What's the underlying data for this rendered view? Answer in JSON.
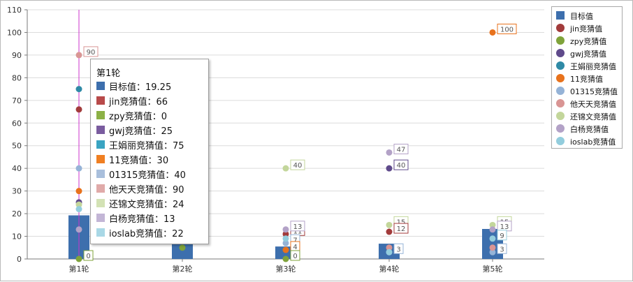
{
  "chart_data": {
    "type": "bar+scatter",
    "categories": [
      "第1轮",
      "第2轮",
      "第3轮",
      "第4轮",
      "第5轮"
    ],
    "ylim": [
      0,
      110
    ],
    "yticks": [
      0,
      10,
      20,
      30,
      40,
      50,
      60,
      70,
      80,
      90,
      100,
      110
    ],
    "grid": true,
    "legend_position": "right",
    "bar_series": {
      "name": "目标值",
      "color": "#3d6fad",
      "values": [
        19.25,
        9,
        5.5,
        6.75,
        13.25
      ]
    },
    "point_series": [
      {
        "name": "jin竞猜值",
        "color": "#a23b3b",
        "values": [
          66,
          null,
          11,
          12,
          null
        ]
      },
      {
        "name": "zpy竞猜值",
        "color": "#7fa33a",
        "values": [
          0,
          5,
          0,
          null,
          null
        ]
      },
      {
        "name": "gwj竞猜值",
        "color": "#5f4a8b",
        "values": [
          25,
          null,
          null,
          40,
          null
        ]
      },
      {
        "name": "王娟丽竞猜值",
        "color": "#2f8aa6",
        "values": [
          75,
          null,
          null,
          null,
          null
        ]
      },
      {
        "name": "11竞猜值",
        "color": "#e8721c",
        "values": [
          30,
          null,
          4,
          null,
          100
        ]
      },
      {
        "name": "01315竞猜值",
        "color": "#95b3d7",
        "values": [
          40,
          null,
          7,
          3,
          3
        ]
      },
      {
        "name": "他天天竞猜值",
        "color": "#d99594",
        "values": [
          90,
          null,
          null,
          5,
          5
        ]
      },
      {
        "name": "还锦文竞猜值",
        "color": "#c3d69b",
        "values": [
          24,
          null,
          40,
          15,
          15
        ]
      },
      {
        "name": "白杨竞猜值",
        "color": "#b3a2c7",
        "values": [
          13,
          null,
          13,
          47,
          13
        ]
      },
      {
        "name": "ioslab竞猜值",
        "color": "#93cddd",
        "values": [
          22,
          null,
          9,
          3,
          9
        ]
      }
    ],
    "labels": [
      {
        "series": "zpy竞猜值",
        "category": "第1轮",
        "text": "0",
        "border": "#7fa33a"
      },
      {
        "series": "他天天竞猜值",
        "category": "第1轮",
        "text": "90",
        "border": "#d99594"
      },
      {
        "series": "jin竞猜值",
        "category": "第3轮",
        "text": "11",
        "border": "#a23b3b"
      },
      {
        "series": "01315竞猜值",
        "category": "第3轮",
        "text": "7",
        "border": "#95b3d7"
      },
      {
        "series": "11竞猜值",
        "category": "第3轮",
        "text": "4",
        "border": "#e8721c"
      },
      {
        "series": "zpy竞猜值",
        "category": "第3轮",
        "text": "0",
        "border": "#7fa33a"
      },
      {
        "series": "白杨竞猜值",
        "category": "第3轮",
        "text": "13",
        "border": "#b3a2c7"
      },
      {
        "series": "还锦文竞猜值",
        "category": "第3轮",
        "text": "40",
        "border": "#c3d69b"
      },
      {
        "series": "白杨竞猜值",
        "category": "第4轮",
        "text": "47",
        "border": "#b3a2c7"
      },
      {
        "series": "gwj竞猜值",
        "category": "第4轮",
        "text": "40",
        "border": "#5f4a8b"
      },
      {
        "series": "还锦文竞猜值",
        "category": "第4轮",
        "text": "15",
        "border": "#c3d69b"
      },
      {
        "series": "jin竞猜值",
        "category": "第4轮",
        "text": "12",
        "border": "#a23b3b"
      },
      {
        "series": "01315竞猜值",
        "category": "第4轮",
        "text": "3",
        "border": "#95b3d7"
      },
      {
        "series": "11竞猜值",
        "category": "第5轮",
        "text": "100",
        "border": "#e8721c"
      },
      {
        "series": "还锦文竞猜值",
        "category": "第5轮",
        "text": "15",
        "border": "#c3d69b"
      },
      {
        "series": "白杨竞猜值",
        "category": "第5轮",
        "text": "13",
        "border": "#b3a2c7"
      },
      {
        "series": "ioslab竞猜值",
        "category": "第5轮",
        "text": "9",
        "border": "#93cddd"
      },
      {
        "series": "01315竞猜值",
        "category": "第5轮",
        "text": "3",
        "border": "#95b3d7"
      }
    ],
    "hover_marker_category": "第1轮",
    "hover_marker_color": "#cc33cc"
  },
  "tooltip": {
    "title": "第1轮",
    "rows": [
      {
        "text": "目标值：19.25",
        "color": "#3d6fad"
      },
      {
        "text": "jin竞猜值：66",
        "color": "#b84a4a"
      },
      {
        "text": "zpy竞猜值：0",
        "color": "#8cb146"
      },
      {
        "text": "gwj竞猜值：25",
        "color": "#7a5c9f"
      },
      {
        "text": "王娟丽竞猜值：75",
        "color": "#3aa4c2"
      },
      {
        "text": "11竞猜值：30",
        "color": "#f07f22"
      },
      {
        "text": "01315竞猜值：40",
        "color": "#a9bfdc"
      },
      {
        "text": "他天天竞猜值：90",
        "color": "#e0aaa9"
      },
      {
        "text": "还锦文竞猜值：24",
        "color": "#d3e2b5"
      },
      {
        "text": "白杨竞猜值：13",
        "color": "#c3b6d6"
      },
      {
        "text": "ioslab竞猜值：22",
        "color": "#a9d8e6"
      }
    ]
  },
  "legend": {
    "items": [
      {
        "label": "目标值",
        "color": "#3d6fad",
        "shape": "square"
      },
      {
        "label": "jin竞猜值",
        "color": "#a23b3b",
        "shape": "circle"
      },
      {
        "label": "zpy竞猜值",
        "color": "#7fa33a",
        "shape": "circle"
      },
      {
        "label": "gwj竞猜值",
        "color": "#5f4a8b",
        "shape": "circle"
      },
      {
        "label": "王娟丽竞猜值",
        "color": "#2f8aa6",
        "shape": "circle"
      },
      {
        "label": "11竞猜值",
        "color": "#e8721c",
        "shape": "circle"
      },
      {
        "label": "01315竞猜值",
        "color": "#95b3d7",
        "shape": "circle"
      },
      {
        "label": "他天天竞猜值",
        "color": "#d99594",
        "shape": "circle"
      },
      {
        "label": "还锦文竞猜值",
        "color": "#c3d69b",
        "shape": "circle"
      },
      {
        "label": "白杨竞猜值",
        "color": "#b3a2c7",
        "shape": "circle"
      },
      {
        "label": "ioslab竞猜值",
        "color": "#93cddd",
        "shape": "circle"
      }
    ]
  }
}
